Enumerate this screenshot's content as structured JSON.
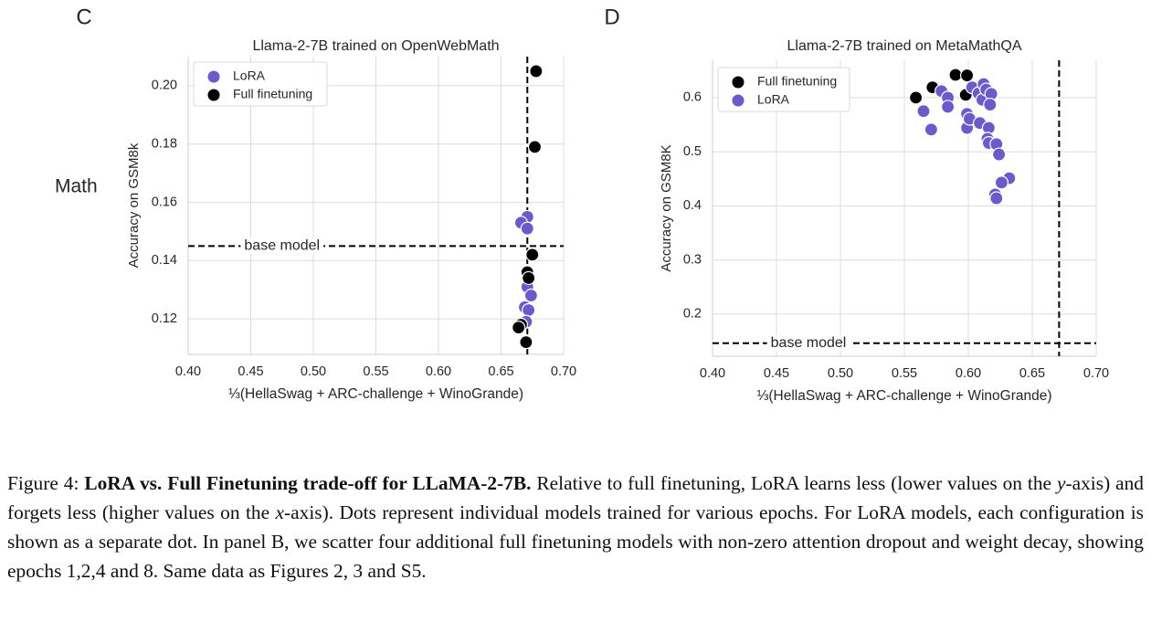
{
  "panel_row_label": "Math",
  "chart_data": [
    {
      "type": "scatter",
      "panel": "C",
      "title": "Llama-2-7B trained on OpenWebMath",
      "x_label": "⅓(HellaSwag + ARC-challenge + WinoGrande)",
      "y_label": "Accuracy on GSM8k",
      "xlim": [
        0.4,
        0.7
      ],
      "ylim": [
        0.1078,
        0.21
      ],
      "xticks": [
        {
          "value": 0.4,
          "label": "0.40"
        },
        {
          "value": 0.45,
          "label": "0.45"
        },
        {
          "value": 0.5,
          "label": "0.50"
        },
        {
          "value": 0.55,
          "label": "0.55"
        },
        {
          "value": 0.6,
          "label": "0.60"
        },
        {
          "value": 0.65,
          "label": "0.65"
        },
        {
          "value": 0.7,
          "label": "0.70"
        }
      ],
      "yticks": [
        0.12,
        0.14,
        0.16,
        0.18,
        {
          "value": 0.2,
          "label": "0.20"
        }
      ],
      "grid": true,
      "legend": "upper left",
      "hlines": [
        {
          "value": 0.145,
          "label": "base model"
        }
      ],
      "vlines": [
        0.671
      ],
      "series": [
        {
          "name": "LoRA",
          "color": "#6a5acd",
          "x": [
            0.671,
            0.666,
            0.671,
            0.671,
            0.674,
            0.669,
            0.672,
            0.67
          ],
          "values": [
            0.155,
            0.153,
            0.151,
            0.131,
            0.128,
            0.124,
            0.123,
            0.119
          ]
        },
        {
          "name": "Full finetuning",
          "color": "#000000",
          "x": [
            0.678,
            0.677,
            0.675,
            0.671,
            0.672,
            0.666,
            0.67,
            0.664
          ],
          "values": [
            0.205,
            0.179,
            0.142,
            0.136,
            0.134,
            0.118,
            0.112,
            0.117
          ]
        }
      ]
    },
    {
      "type": "scatter",
      "panel": "D",
      "title": "Llama-2-7B trained on MetaMathQA",
      "x_label": "⅓(HellaSwag + ARC-challenge + WinoGrande)",
      "y_label": "Accuracy on GSM8K",
      "xlim": [
        0.4,
        0.7
      ],
      "ylim": [
        0.122,
        0.669
      ],
      "xticks": [
        {
          "value": 0.4,
          "label": "0.40"
        },
        {
          "value": 0.45,
          "label": "0.45"
        },
        {
          "value": 0.5,
          "label": "0.50"
        },
        {
          "value": 0.55,
          "label": "0.55"
        },
        {
          "value": 0.6,
          "label": "0.60"
        },
        {
          "value": 0.65,
          "label": "0.65"
        },
        {
          "value": 0.7,
          "label": "0.70"
        }
      ],
      "yticks": [
        0.2,
        0.3,
        0.4,
        0.5,
        0.6
      ],
      "grid": true,
      "legend": "upper left",
      "hlines": [
        {
          "value": 0.146,
          "label": "base model"
        }
      ],
      "vlines": [
        0.671
      ],
      "series": [
        {
          "name": "Full finetuning",
          "color": "#000000",
          "x": [
            0.559,
            0.572,
            0.59,
            0.599,
            0.598
          ],
          "values": [
            0.6,
            0.619,
            0.642,
            0.641,
            0.605
          ]
        },
        {
          "name": "LoRA",
          "color": "#6a5acd",
          "x": [
            0.565,
            0.571,
            0.579,
            0.584,
            0.584,
            0.599,
            0.599,
            0.601,
            0.603,
            0.608,
            0.611,
            0.612,
            0.614,
            0.618,
            0.617,
            0.609,
            0.616,
            0.615,
            0.616,
            0.622,
            0.624,
            0.632,
            0.626,
            0.621,
            0.622
          ],
          "values": [
            0.575,
            0.541,
            0.612,
            0.6,
            0.583,
            0.57,
            0.544,
            0.561,
            0.619,
            0.608,
            0.596,
            0.625,
            0.615,
            0.607,
            0.587,
            0.553,
            0.544,
            0.524,
            0.516,
            0.514,
            0.495,
            0.451,
            0.443,
            0.421,
            0.414
          ]
        }
      ]
    }
  ],
  "caption": {
    "segments": [
      "Figure 4: ",
      "LoRA vs. Full Finetuning trade-off for LLaMA-2-7B.",
      " Relative to full finetuning, LoRA learns less (lower values on the ",
      "y",
      "-axis) and forgets less (higher values on the ",
      "x",
      "-axis). Dots represent individual models trained for various epochs. For LoRA models, each configuration is shown as a separate dot. In panel B, we scatter four additional full finetuning models with non-zero attention dropout and weight decay, showing epochs 1,2,4 and 8. Same data as Figures 2, 3 and S5."
    ]
  }
}
